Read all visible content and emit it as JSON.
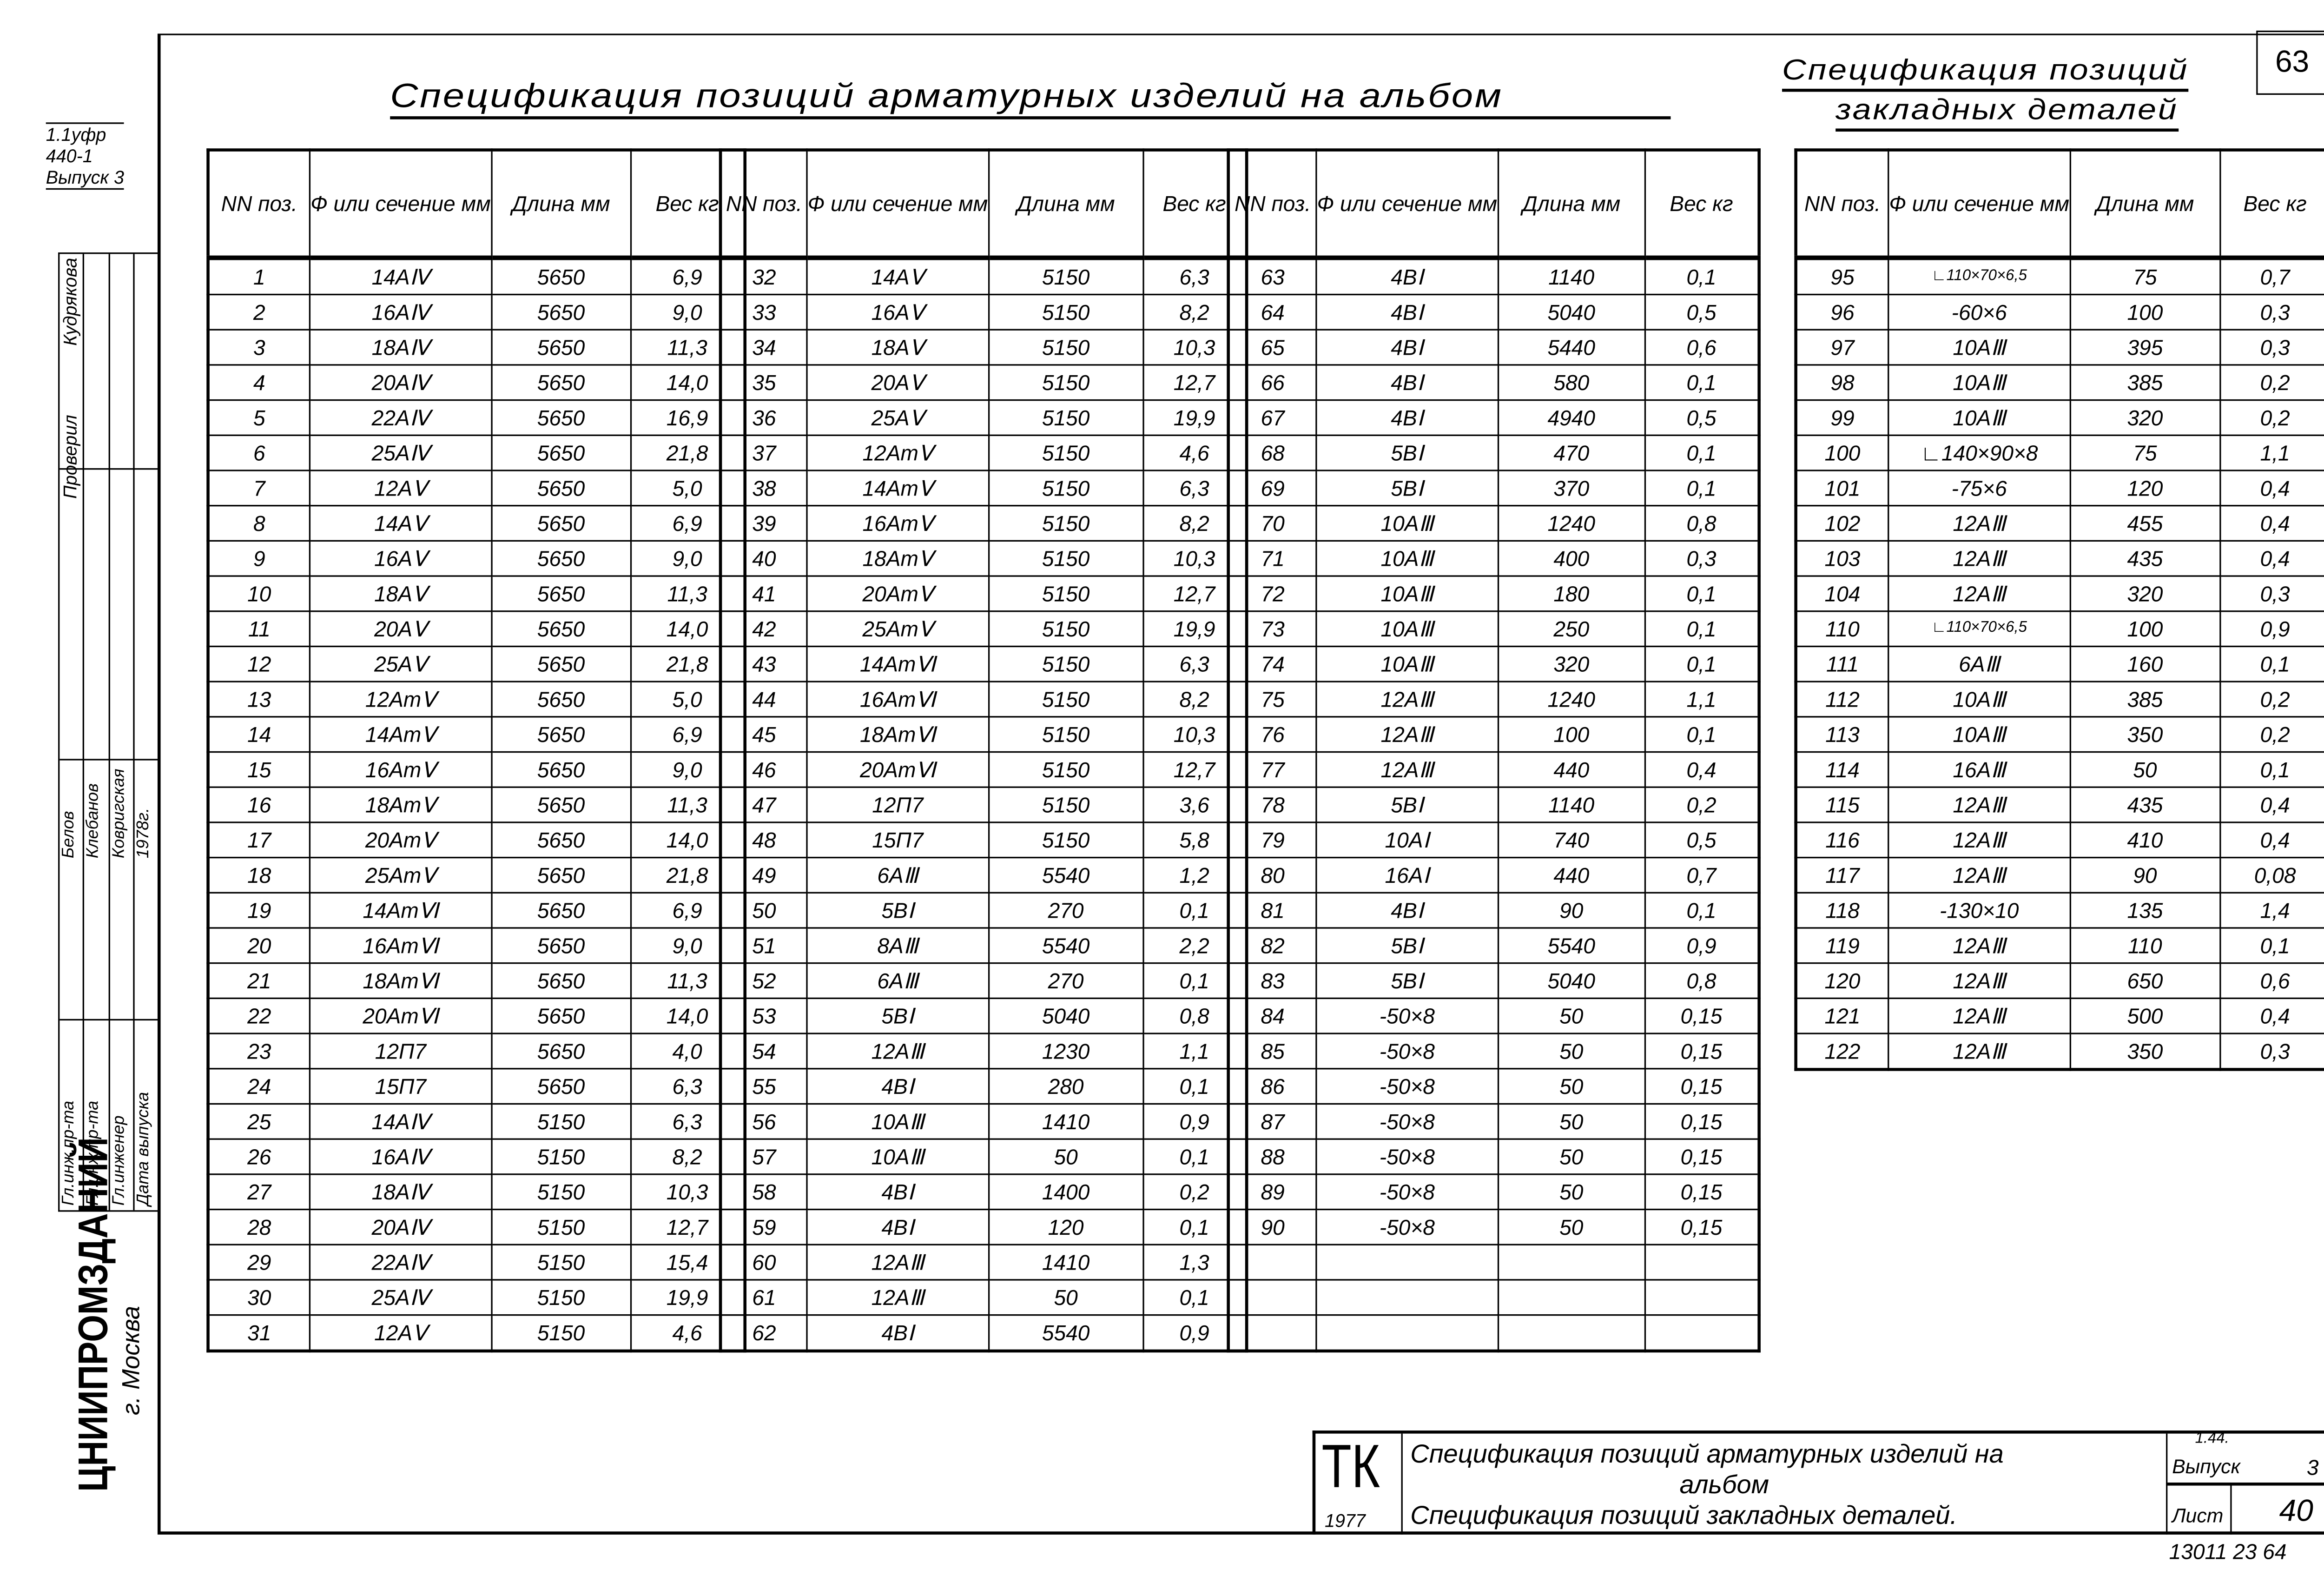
{
  "page_number": "63",
  "main_title": "Спецификация позиций арматурных изделий на альбом",
  "side_title_1": "Спецификация позиций",
  "side_title_2": "закладных деталей",
  "header": [
    "NN поз.",
    "Ф или сечение мм",
    "Длина мм",
    "Вес кг"
  ],
  "tables": [
    {
      "rows": [
        [
          "1",
          "14АⅣ",
          "5650",
          "6,9"
        ],
        [
          "2",
          "16АⅣ",
          "5650",
          "9,0"
        ],
        [
          "3",
          "18АⅣ",
          "5650",
          "11,3"
        ],
        [
          "4",
          "20АⅣ",
          "5650",
          "14,0"
        ],
        [
          "5",
          "22АⅣ",
          "5650",
          "16,9"
        ],
        [
          "6",
          "25АⅣ",
          "5650",
          "21,8"
        ],
        [
          "7",
          "12АⅤ",
          "5650",
          "5,0"
        ],
        [
          "8",
          "14АⅤ",
          "5650",
          "6,9"
        ],
        [
          "9",
          "16АⅤ",
          "5650",
          "9,0"
        ],
        [
          "10",
          "18АⅤ",
          "5650",
          "11,3"
        ],
        [
          "11",
          "20АⅤ",
          "5650",
          "14,0"
        ],
        [
          "12",
          "25АⅤ",
          "5650",
          "21,8"
        ],
        [
          "13",
          "12АтⅤ",
          "5650",
          "5,0"
        ],
        [
          "14",
          "14АтⅤ",
          "5650",
          "6,9"
        ],
        [
          "15",
          "16АтⅤ",
          "5650",
          "9,0"
        ],
        [
          "16",
          "18АтⅤ",
          "5650",
          "11,3"
        ],
        [
          "17",
          "20АтⅤ",
          "5650",
          "14,0"
        ],
        [
          "18",
          "25АтⅤ",
          "5650",
          "21,8"
        ],
        [
          "19",
          "14АтⅥ",
          "5650",
          "6,9"
        ],
        [
          "20",
          "16АтⅥ",
          "5650",
          "9,0"
        ],
        [
          "21",
          "18АтⅥ",
          "5650",
          "11,3"
        ],
        [
          "22",
          "20АтⅥ",
          "5650",
          "14,0"
        ],
        [
          "23",
          "12П7",
          "5650",
          "4,0"
        ],
        [
          "24",
          "15П7",
          "5650",
          "6,3"
        ],
        [
          "25",
          "14АⅣ",
          "5150",
          "6,3"
        ],
        [
          "26",
          "16АⅣ",
          "5150",
          "8,2"
        ],
        [
          "27",
          "18АⅣ",
          "5150",
          "10,3"
        ],
        [
          "28",
          "20АⅣ",
          "5150",
          "12,7"
        ],
        [
          "29",
          "22АⅣ",
          "5150",
          "15,4"
        ],
        [
          "30",
          "25АⅣ",
          "5150",
          "19,9"
        ],
        [
          "31",
          "12АⅤ",
          "5150",
          "4,6"
        ]
      ]
    },
    {
      "rows": [
        [
          "32",
          "14АⅤ",
          "5150",
          "6,3"
        ],
        [
          "33",
          "16АⅤ",
          "5150",
          "8,2"
        ],
        [
          "34",
          "18АⅤ",
          "5150",
          "10,3"
        ],
        [
          "35",
          "20АⅤ",
          "5150",
          "12,7"
        ],
        [
          "36",
          "25АⅤ",
          "5150",
          "19,9"
        ],
        [
          "37",
          "12АтⅤ",
          "5150",
          "4,6"
        ],
        [
          "38",
          "14АтⅤ",
          "5150",
          "6,3"
        ],
        [
          "39",
          "16АтⅤ",
          "5150",
          "8,2"
        ],
        [
          "40",
          "18АтⅤ",
          "5150",
          "10,3"
        ],
        [
          "41",
          "20АтⅤ",
          "5150",
          "12,7"
        ],
        [
          "42",
          "25АтⅤ",
          "5150",
          "19,9"
        ],
        [
          "43",
          "14АтⅥ",
          "5150",
          "6,3"
        ],
        [
          "44",
          "16АтⅥ",
          "5150",
          "8,2"
        ],
        [
          "45",
          "18АтⅥ",
          "5150",
          "10,3"
        ],
        [
          "46",
          "20АтⅥ",
          "5150",
          "12,7"
        ],
        [
          "47",
          "12П7",
          "5150",
          "3,6"
        ],
        [
          "48",
          "15П7",
          "5150",
          "5,8"
        ],
        [
          "49",
          "6АⅢ",
          "5540",
          "1,2"
        ],
        [
          "50",
          "5ВⅠ",
          "270",
          "0,1"
        ],
        [
          "51",
          "8АⅢ",
          "5540",
          "2,2"
        ],
        [
          "52",
          "6АⅢ",
          "270",
          "0,1"
        ],
        [
          "53",
          "5ВⅠ",
          "5040",
          "0,8"
        ],
        [
          "54",
          "12АⅢ",
          "1230",
          "1,1"
        ],
        [
          "55",
          "4ВⅠ",
          "280",
          "0,1"
        ],
        [
          "56",
          "10АⅢ",
          "1410",
          "0,9"
        ],
        [
          "57",
          "10АⅢ",
          "50",
          "0,1"
        ],
        [
          "58",
          "4ВⅠ",
          "1400",
          "0,2"
        ],
        [
          "59",
          "4ВⅠ",
          "120",
          "0,1"
        ],
        [
          "60",
          "12АⅢ",
          "1410",
          "1,3"
        ],
        [
          "61",
          "12АⅢ",
          "50",
          "0,1"
        ],
        [
          "62",
          "4ВⅠ",
          "5540",
          "0,9"
        ]
      ]
    },
    {
      "rows": [
        [
          "63",
          "4ВⅠ",
          "1140",
          "0,1"
        ],
        [
          "64",
          "4ВⅠ",
          "5040",
          "0,5"
        ],
        [
          "65",
          "4ВⅠ",
          "5440",
          "0,6"
        ],
        [
          "66",
          "4ВⅠ",
          "580",
          "0,1"
        ],
        [
          "67",
          "4ВⅠ",
          "4940",
          "0,5"
        ],
        [
          "68",
          "5ВⅠ",
          "470",
          "0,1"
        ],
        [
          "69",
          "5ВⅠ",
          "370",
          "0,1"
        ],
        [
          "70",
          "10АⅢ",
          "1240",
          "0,8"
        ],
        [
          "71",
          "10АⅢ",
          "400",
          "0,3"
        ],
        [
          "72",
          "10АⅢ",
          "180",
          "0,1"
        ],
        [
          "73",
          "10АⅢ",
          "250",
          "0,1"
        ],
        [
          "74",
          "10АⅢ",
          "320",
          "0,1"
        ],
        [
          "75",
          "12АⅢ",
          "1240",
          "1,1"
        ],
        [
          "76",
          "12АⅢ",
          "100",
          "0,1"
        ],
        [
          "77",
          "12АⅢ",
          "440",
          "0,4"
        ],
        [
          "78",
          "5ВⅠ",
          "1140",
          "0,2"
        ],
        [
          "79",
          "10АⅠ",
          "740",
          "0,5"
        ],
        [
          "80",
          "16АⅠ",
          "440",
          "0,7"
        ],
        [
          "81",
          "4ВⅠ",
          "90",
          "0,1"
        ],
        [
          "82",
          "5ВⅠ",
          "5540",
          "0,9"
        ],
        [
          "83",
          "5ВⅠ",
          "5040",
          "0,8"
        ],
        [
          "84",
          "-50×8",
          "50",
          "0,15"
        ],
        [
          "85",
          "-50×8",
          "50",
          "0,15"
        ],
        [
          "86",
          "-50×8",
          "50",
          "0,15"
        ],
        [
          "87",
          "-50×8",
          "50",
          "0,15"
        ],
        [
          "88",
          "-50×8",
          "50",
          "0,15"
        ],
        [
          "89",
          "-50×8",
          "50",
          "0,15"
        ],
        [
          "90",
          "-50×8",
          "50",
          "0,15"
        ],
        [
          "",
          "",
          "",
          ""
        ],
        [
          "",
          "",
          "",
          ""
        ],
        [
          "",
          "",
          "",
          ""
        ]
      ]
    },
    {
      "rows": [
        [
          "95",
          "∟110×70×6,5",
          "75",
          "0,7"
        ],
        [
          "96",
          "-60×6",
          "100",
          "0,3"
        ],
        [
          "97",
          "10АⅢ",
          "395",
          "0,3"
        ],
        [
          "98",
          "10АⅢ",
          "385",
          "0,2"
        ],
        [
          "99",
          "10АⅢ",
          "320",
          "0,2"
        ],
        [
          "100",
          "∟140×90×8",
          "75",
          "1,1"
        ],
        [
          "101",
          "-75×6",
          "120",
          "0,4"
        ],
        [
          "102",
          "12АⅢ",
          "455",
          "0,4"
        ],
        [
          "103",
          "12АⅢ",
          "435",
          "0,4"
        ],
        [
          "104",
          "12АⅢ",
          "320",
          "0,3"
        ],
        [
          "110",
          "∟110×70×6,5",
          "100",
          "0,9"
        ],
        [
          "111",
          "6АⅢ",
          "160",
          "0,1"
        ],
        [
          "112",
          "10АⅢ",
          "385",
          "0,2"
        ],
        [
          "113",
          "10АⅢ",
          "350",
          "0,2"
        ],
        [
          "114",
          "16АⅢ",
          "50",
          "0,1"
        ],
        [
          "115",
          "12АⅢ",
          "435",
          "0,4"
        ],
        [
          "116",
          "12АⅢ",
          "410",
          "0,4"
        ],
        [
          "117",
          "12АⅢ",
          "90",
          "0,08"
        ],
        [
          "118",
          "-130×10",
          "135",
          "1,4"
        ],
        [
          "119",
          "12АⅢ",
          "110",
          "0,1"
        ],
        [
          "120",
          "12АⅢ",
          "650",
          "0,6"
        ],
        [
          "121",
          "12АⅢ",
          "500",
          "0,4"
        ],
        [
          "122",
          "12АⅢ",
          "350",
          "0,3"
        ]
      ]
    }
  ],
  "title_block": {
    "mark": "ТК",
    "year": "1977",
    "line1": "Спецификация позиций арматурных изделий на",
    "line2": "альбом",
    "line3": "Спецификация позиций закладных деталей.",
    "series_code": "1.44.",
    "issue_label": "Выпуск",
    "issue_value": "3",
    "sheet_label": "Лист",
    "sheet_value": "40",
    "below": "13011 23 64"
  },
  "margin": {
    "code1": "1.1уфр",
    "code2": "440-1",
    "code3": "Выпуск 3",
    "roles": [
      "Гл.инж.пр-та",
      "Гл.инж.пр-та",
      "Гл.инженер",
      "Дата выпуска"
    ],
    "names": [
      "Белов",
      "Клебанов",
      "Ковригская",
      "1978г."
    ],
    "checked": "Проверил",
    "checker": "Кудрякова",
    "org": "ЦНИИПРОМЗДАНИЙ",
    "city": "г. Москва"
  }
}
